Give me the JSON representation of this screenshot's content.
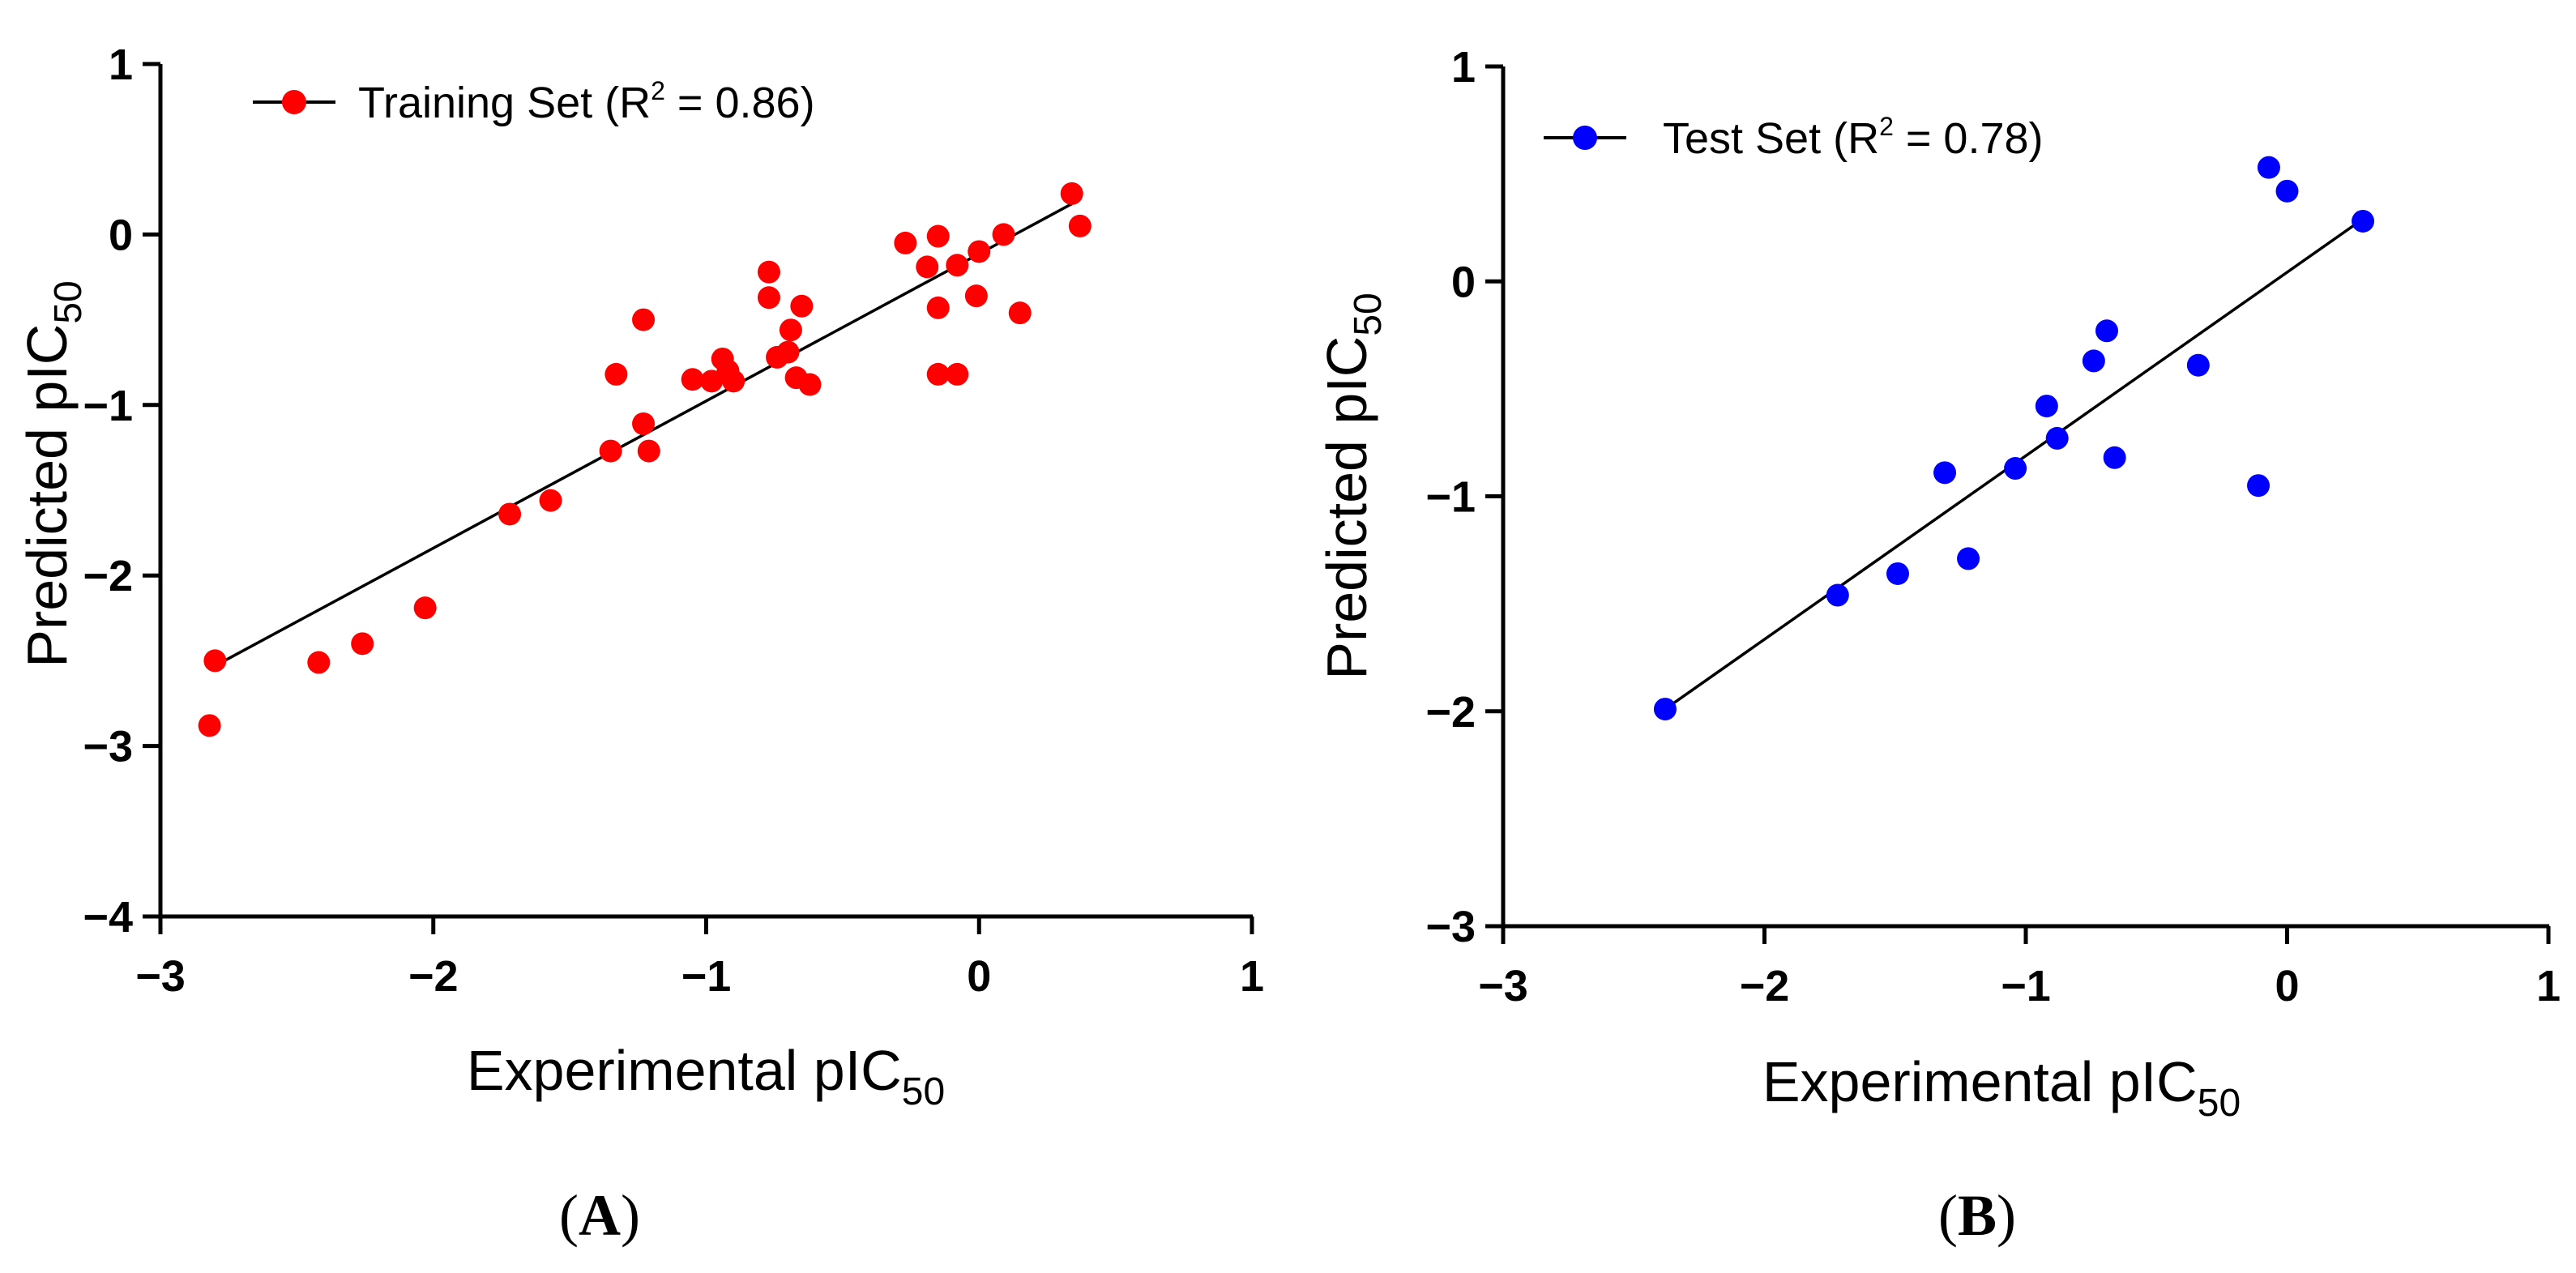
{
  "chart_data": [
    {
      "type": "scatter",
      "panel_label": "A",
      "title": "",
      "xlabel": "Experimental pIC",
      "xlabel_sub": "50",
      "ylabel": "Predicted pIC",
      "ylabel_sub": "50",
      "xlim": [
        -3,
        1
      ],
      "ylim": [
        -4,
        1
      ],
      "xticks": [
        -3,
        -2,
        -1,
        0,
        1
      ],
      "yticks": [
        -4,
        -3,
        -2,
        -1,
        0,
        1
      ],
      "xtick_labels": [
        "−3",
        "−2",
        "−1",
        "0",
        "1"
      ],
      "ytick_labels": [
        "−4",
        "−3",
        "−2",
        "−1",
        "0",
        "1"
      ],
      "grid": false,
      "legend_position": "top-left",
      "color": "#ff0000",
      "series": [
        {
          "name": "Training Set",
          "legend_label": "Training Set (R",
          "legend_sup": "2",
          "legend_suffix": " = 0.86)",
          "points": [
            [
              -2.82,
              -2.88
            ],
            [
              -2.8,
              -2.5
            ],
            [
              -2.42,
              -2.51
            ],
            [
              -2.26,
              -2.4
            ],
            [
              -2.03,
              -2.19
            ],
            [
              -1.72,
              -1.64
            ],
            [
              -1.57,
              -1.56
            ],
            [
              -1.35,
              -1.27
            ],
            [
              -1.33,
              -0.82
            ],
            [
              -1.23,
              -0.5
            ],
            [
              -1.23,
              -1.11
            ],
            [
              -1.21,
              -1.27
            ],
            [
              -1.05,
              -0.85
            ],
            [
              -0.98,
              -0.86
            ],
            [
              -0.94,
              -0.73
            ],
            [
              -0.92,
              -0.8
            ],
            [
              -0.9,
              -0.86
            ],
            [
              -0.77,
              -0.22
            ],
            [
              -0.77,
              -0.37
            ],
            [
              -0.74,
              -0.72
            ],
            [
              -0.7,
              -0.69
            ],
            [
              -0.69,
              -0.56
            ],
            [
              -0.67,
              -0.84
            ],
            [
              -0.65,
              -0.42
            ],
            [
              -0.62,
              -0.88
            ],
            [
              -0.27,
              -0.05
            ],
            [
              -0.19,
              -0.19
            ],
            [
              -0.15,
              -0.01
            ],
            [
              -0.15,
              -0.43
            ],
            [
              -0.15,
              -0.82
            ],
            [
              -0.08,
              -0.18
            ],
            [
              -0.08,
              -0.82
            ],
            [
              -0.01,
              -0.36
            ],
            [
              0.0,
              -0.1
            ],
            [
              0.09,
              0.0
            ],
            [
              0.15,
              -0.46
            ],
            [
              0.34,
              0.24
            ],
            [
              0.37,
              0.05
            ]
          ]
        }
      ],
      "fit_line": {
        "x": [
          -2.8,
          0.34
        ],
        "y": [
          -2.53,
          0.18
        ]
      }
    },
    {
      "type": "scatter",
      "panel_label": "B",
      "title": "",
      "xlabel": "Experimental pIC",
      "xlabel_sub": "50",
      "ylabel": "Predicted pIC",
      "ylabel_sub": "50",
      "xlim": [
        -3,
        1
      ],
      "ylim": [
        -3,
        1
      ],
      "xticks": [
        -3,
        -2,
        -1,
        0,
        1
      ],
      "yticks": [
        -3,
        -2,
        -1,
        0,
        1
      ],
      "xtick_labels": [
        "−3",
        "−2",
        "−1",
        "0",
        "1"
      ],
      "ytick_labels": [
        "−3",
        "−2",
        "−1",
        "0",
        "1"
      ],
      "grid": false,
      "legend_position": "top-left",
      "color": "#0000ff",
      "series": [
        {
          "name": "Test Set",
          "legend_label": "Test Set (R",
          "legend_sup": "2",
          "legend_suffix": " = 0.78)",
          "points": [
            [
              -2.38,
              -1.99
            ],
            [
              -1.72,
              -1.46
            ],
            [
              -1.49,
              -1.36
            ],
            [
              -1.31,
              -0.89
            ],
            [
              -1.22,
              -1.29
            ],
            [
              -1.04,
              -0.87
            ],
            [
              -0.92,
              -0.58
            ],
            [
              -0.88,
              -0.73
            ],
            [
              -0.74,
              -0.37
            ],
            [
              -0.69,
              -0.23
            ],
            [
              -0.66,
              -0.82
            ],
            [
              -0.34,
              -0.39
            ],
            [
              -0.11,
              -0.95
            ],
            [
              -0.07,
              0.53
            ],
            [
              0.0,
              0.42
            ],
            [
              0.29,
              0.28
            ]
          ]
        }
      ],
      "fit_line": {
        "x": [
          -2.38,
          0.29
        ],
        "y": [
          -1.99,
          0.29
        ]
      }
    }
  ]
}
